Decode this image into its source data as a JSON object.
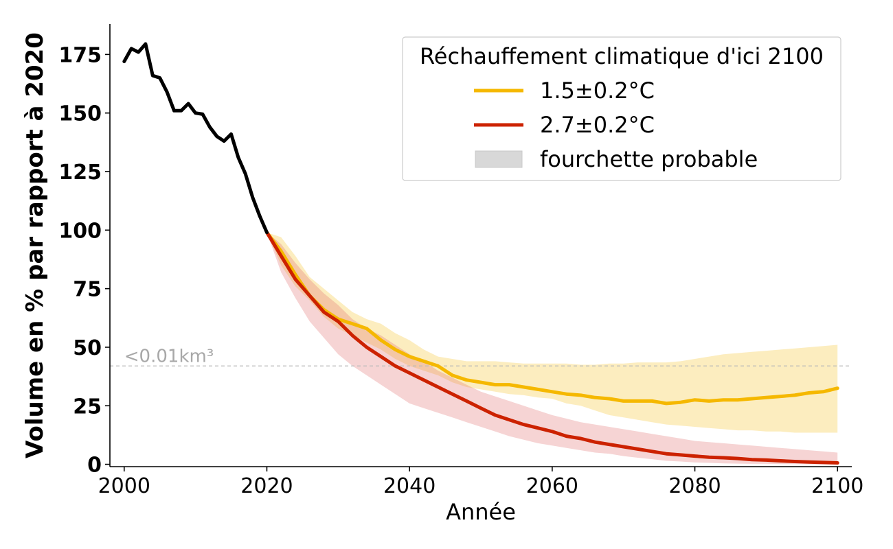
{
  "chart_data": {
    "type": "line",
    "xlabel": "Année",
    "ylabel": "Volume en % par rapport à 2020",
    "xlim": [
      1998,
      2102
    ],
    "ylim": [
      -1,
      188
    ],
    "x_ticks": [
      2000,
      2020,
      2040,
      2060,
      2080,
      2100
    ],
    "x_tick_labels": [
      "2000",
      "2020",
      "2040",
      "2060",
      "2080",
      "2100"
    ],
    "y_ticks": [
      0,
      25,
      50,
      75,
      100,
      125,
      150,
      175
    ],
    "y_tick_labels": [
      "0",
      "25",
      "50",
      "75",
      "100",
      "125",
      "150",
      "175"
    ],
    "threshold": {
      "value": 42,
      "label": "<0.01km³",
      "color": "#b8b8b8"
    },
    "legend": {
      "title": "Réchauffement climatique d'ici 2100",
      "position": "top-right",
      "entries": [
        {
          "label": "1.5±0.2°C",
          "color": "#f5b800",
          "kind": "line"
        },
        {
          "label": "2.7±0.2°C",
          "color": "#cc2200",
          "kind": "line"
        },
        {
          "label": "fourchette probable",
          "color": "#d8d8d8",
          "kind": "patch"
        }
      ]
    },
    "historical": {
      "color": "#000000",
      "x": [
        2000,
        2001,
        2002,
        2003,
        2004,
        2005,
        2006,
        2007,
        2008,
        2009,
        2010,
        2011,
        2012,
        2013,
        2014,
        2015,
        2016,
        2017,
        2018,
        2019,
        2020
      ],
      "y": [
        172,
        177.5,
        176,
        179.5,
        166,
        165,
        159,
        151,
        151,
        154,
        150,
        149.5,
        144,
        140,
        138,
        141,
        131,
        124,
        114,
        106,
        99
      ]
    },
    "series": [
      {
        "name": "1.5±0.2°C",
        "color": "#f5b800",
        "band_color": "#f5b800",
        "x": [
          2020,
          2022,
          2024,
          2026,
          2028,
          2030,
          2032,
          2034,
          2036,
          2038,
          2040,
          2042,
          2044,
          2046,
          2048,
          2050,
          2052,
          2054,
          2056,
          2058,
          2060,
          2062,
          2064,
          2066,
          2068,
          2070,
          2072,
          2074,
          2076,
          2078,
          2080,
          2082,
          2084,
          2086,
          2088,
          2090,
          2092,
          2094,
          2096,
          2098,
          2100
        ],
        "y": [
          99,
          91,
          81,
          72,
          66,
          62,
          60,
          58,
          53,
          49,
          46,
          44,
          42,
          38,
          36,
          35,
          34,
          34,
          33,
          32,
          31,
          30,
          29.5,
          28.5,
          28,
          27,
          27,
          27,
          26,
          26.5,
          27.5,
          27,
          27.5,
          27.5,
          28,
          28.5,
          29,
          29.5,
          30.5,
          31,
          32.5
        ],
        "band_lower": [
          99,
          85,
          76,
          70,
          63,
          58,
          55,
          52,
          49,
          45,
          42,
          40,
          38,
          35,
          33,
          32,
          31,
          30,
          29.5,
          28.5,
          28,
          26,
          25,
          23,
          21,
          20,
          19,
          18,
          17,
          16.5,
          16,
          15.5,
          15,
          14.5,
          14.5,
          14,
          14,
          13.5,
          13.5,
          13.5,
          13.5
        ],
        "band_upper": [
          99,
          97,
          89,
          80,
          75,
          70,
          65,
          62,
          60,
          56,
          53,
          49,
          46,
          45,
          44,
          44,
          44,
          43.5,
          43,
          43,
          43,
          43,
          42.5,
          42.5,
          43,
          43,
          43.5,
          43.5,
          43.5,
          44,
          45,
          46,
          47,
          47.5,
          48,
          48.5,
          49,
          49.5,
          50,
          50.5,
          51
        ]
      },
      {
        "name": "2.7±0.2°C",
        "color": "#cc2200",
        "band_color": "#e06666",
        "x": [
          2020,
          2022,
          2024,
          2026,
          2028,
          2030,
          2032,
          2034,
          2036,
          2038,
          2040,
          2042,
          2044,
          2046,
          2048,
          2050,
          2052,
          2054,
          2056,
          2058,
          2060,
          2062,
          2064,
          2066,
          2068,
          2070,
          2072,
          2074,
          2076,
          2078,
          2080,
          2082,
          2084,
          2086,
          2088,
          2090,
          2092,
          2094,
          2096,
          2098,
          2100
        ],
        "y": [
          99,
          89,
          79,
          72,
          65,
          61,
          55,
          50,
          46,
          42,
          39,
          36,
          33,
          30,
          27,
          24,
          21,
          19,
          17,
          15.5,
          14,
          12,
          11,
          9.5,
          8.5,
          7.5,
          6.5,
          5.5,
          4.5,
          4,
          3.5,
          3,
          2.8,
          2.5,
          2,
          1.8,
          1.5,
          1.2,
          1,
          0.8,
          0.6
        ],
        "band_lower": [
          99,
          82,
          71,
          61,
          54,
          47,
          42,
          38,
          34,
          30,
          26,
          24,
          22,
          20,
          18,
          16,
          14,
          12,
          10.5,
          9,
          8,
          7,
          6,
          5,
          4.5,
          3.5,
          2.8,
          2.2,
          1.5,
          1.2,
          0.8,
          0.6,
          0.4,
          0.3,
          0.2,
          0.2,
          0.1,
          0.1,
          0,
          0,
          0
        ],
        "band_upper": [
          99,
          94,
          86,
          79,
          73,
          68,
          62,
          58,
          55,
          51,
          47,
          44,
          40,
          37,
          34,
          31,
          29,
          27,
          25,
          23,
          21,
          19.5,
          18,
          17,
          16,
          15,
          14,
          13,
          12,
          11,
          10,
          9.5,
          9,
          8.5,
          8,
          7.5,
          7,
          6.5,
          6,
          5.5,
          5
        ]
      }
    ]
  }
}
